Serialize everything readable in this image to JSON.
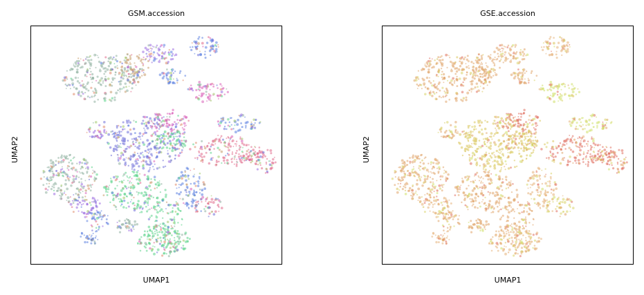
{
  "chart_data": [
    {
      "type": "scatter",
      "title": "GSM.accession",
      "xlabel": "UMAP1",
      "ylabel": "UMAP2",
      "grid": false,
      "legend": "none",
      "palette": [
        "#6f6fd8",
        "#5bd38a",
        "#e06a8a",
        "#8fb0a0",
        "#c79a6a",
        "#9a6be0",
        "#d95fb8",
        "#5b7fe0",
        "#a0c86a",
        "#e08a6a"
      ]
    },
    {
      "type": "scatter",
      "title": "GSE.accession",
      "xlabel": "UMAP1",
      "ylabel": "UMAP2",
      "grid": false,
      "legend": "none",
      "palette": [
        "#e0a46a",
        "#d8c45a",
        "#e07060",
        "#cfe06a",
        "#e6b37a",
        "#d9d36a"
      ]
    }
  ]
}
